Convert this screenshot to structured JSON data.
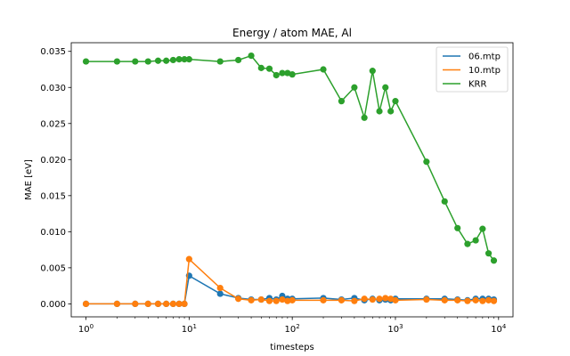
{
  "chart_data": {
    "type": "line",
    "title": "Energy / atom MAE, Al",
    "xlabel": "timesteps",
    "ylabel": "MAE [eV]",
    "xscale": "log",
    "xlim": [
      0.72,
      13800
    ],
    "ylim": [
      -0.0018,
      0.0362
    ],
    "x_ticks": [
      {
        "value": 1,
        "base": "10",
        "exp": "0"
      },
      {
        "value": 10,
        "base": "10",
        "exp": "1"
      },
      {
        "value": 100,
        "base": "10",
        "exp": "2"
      },
      {
        "value": 1000,
        "base": "10",
        "exp": "3"
      },
      {
        "value": 10000,
        "base": "10",
        "exp": "4"
      }
    ],
    "y_ticks": [
      {
        "value": 0.0,
        "label": "0.000"
      },
      {
        "value": 0.005,
        "label": "0.005"
      },
      {
        "value": 0.01,
        "label": "0.010"
      },
      {
        "value": 0.015,
        "label": "0.015"
      },
      {
        "value": 0.02,
        "label": "0.020"
      },
      {
        "value": 0.025,
        "label": "0.025"
      },
      {
        "value": 0.03,
        "label": "0.030"
      },
      {
        "value": 0.035,
        "label": "0.035"
      }
    ],
    "legend_position": "top-right",
    "series": [
      {
        "name": "06.mtp",
        "color": "#1f77b4",
        "x": [
          1,
          2,
          3,
          4,
          5,
          6,
          7,
          8,
          9,
          10,
          20,
          30,
          40,
          50,
          60,
          70,
          80,
          90,
          100,
          200,
          300,
          400,
          500,
          600,
          700,
          800,
          900,
          1000,
          2000,
          3000,
          4000,
          5000,
          6000,
          7000,
          8000,
          9000
        ],
        "y": [
          0.0,
          0.0,
          0.0,
          0.0,
          0.0,
          0.0,
          0.0,
          0.0,
          0.0,
          0.0039,
          0.0014,
          0.0008,
          0.0006,
          0.0006,
          0.0008,
          0.0006,
          0.0011,
          0.0007,
          0.0007,
          0.0008,
          0.0006,
          0.0008,
          0.0005,
          0.0007,
          0.0005,
          0.0006,
          0.0005,
          0.0007,
          0.0007,
          0.0007,
          0.0006,
          0.0005,
          0.0007,
          0.0007,
          0.0007,
          0.0006
        ]
      },
      {
        "name": "10.mtp",
        "color": "#ff7f0e",
        "x": [
          1,
          2,
          3,
          4,
          5,
          6,
          7,
          8,
          9,
          10,
          20,
          30,
          40,
          50,
          60,
          70,
          80,
          90,
          100,
          200,
          300,
          400,
          500,
          600,
          700,
          800,
          900,
          1000,
          2000,
          3000,
          4000,
          5000,
          6000,
          7000,
          8000,
          9000
        ],
        "y": [
          0.0,
          0.0,
          0.0,
          0.0,
          0.0,
          0.0,
          0.0,
          0.0,
          0.0,
          0.0062,
          0.0022,
          0.0007,
          0.0005,
          0.0006,
          0.0004,
          0.0004,
          0.0006,
          0.0004,
          0.0005,
          0.0005,
          0.0005,
          0.0004,
          0.0007,
          0.0006,
          0.0007,
          0.0008,
          0.0007,
          0.0005,
          0.0006,
          0.0005,
          0.0005,
          0.0004,
          0.0005,
          0.0004,
          0.0005,
          0.0004
        ]
      },
      {
        "name": "KRR",
        "color": "#2ca02c",
        "x": [
          1,
          2,
          3,
          4,
          5,
          6,
          7,
          8,
          9,
          10,
          20,
          30,
          40,
          50,
          60,
          70,
          80,
          90,
          100,
          200,
          300,
          400,
          500,
          600,
          700,
          800,
          900,
          1000,
          2000,
          3000,
          4000,
          5000,
          6000,
          7000,
          8000,
          9000
        ],
        "y": [
          0.0336,
          0.0336,
          0.0336,
          0.0336,
          0.0337,
          0.0337,
          0.0338,
          0.0339,
          0.0339,
          0.0339,
          0.0336,
          0.0338,
          0.0344,
          0.0327,
          0.0326,
          0.0317,
          0.032,
          0.032,
          0.0318,
          0.0325,
          0.0281,
          0.03,
          0.0258,
          0.0323,
          0.0267,
          0.03,
          0.0267,
          0.0281,
          0.0197,
          0.0142,
          0.0105,
          0.0083,
          0.0088,
          0.0104,
          0.007,
          0.006
        ]
      }
    ]
  }
}
